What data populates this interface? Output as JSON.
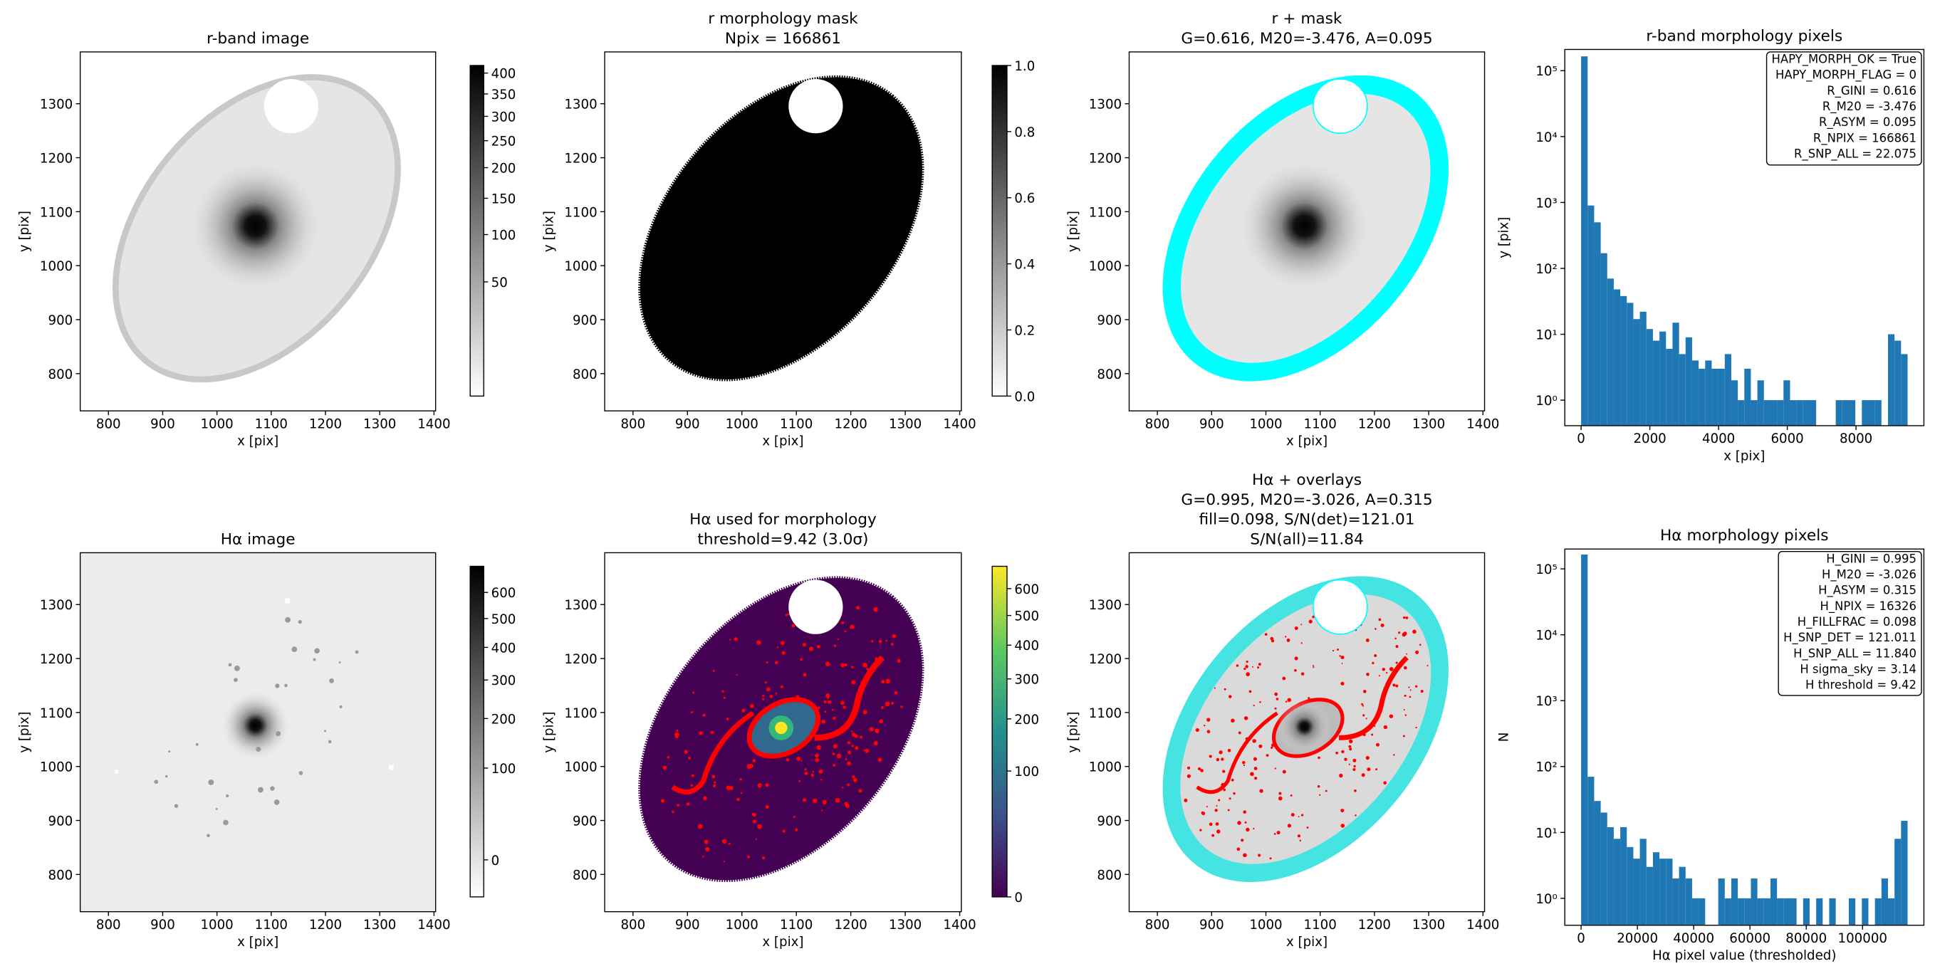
{
  "chart_data": [
    {
      "type": "image",
      "title": [
        "r-band image"
      ],
      "xlabel": "x [pix]",
      "ylabel": "y [pix]",
      "xlim": [
        748,
        1403
      ],
      "ylim": [
        731,
        1396
      ],
      "xticks": [
        800,
        900,
        1000,
        1100,
        1200,
        1300,
        1400
      ],
      "yticks": [
        800,
        900,
        1000,
        1100,
        1200,
        1300
      ],
      "colorbar": {
        "cmap": "gray_r",
        "scale": "sqrt",
        "clim": [
          0,
          419
        ],
        "ticks": [
          50,
          100,
          150,
          200,
          250,
          300,
          350,
          400
        ]
      }
    },
    {
      "type": "image",
      "title": [
        "r morphology mask",
        "Npix = 166861"
      ],
      "xlabel": "x [pix]",
      "ylabel": "y [pix]",
      "xlim": [
        748,
        1403
      ],
      "ylim": [
        731,
        1396
      ],
      "xticks": [
        800,
        900,
        1000,
        1100,
        1200,
        1300,
        1400
      ],
      "yticks": [
        800,
        900,
        1000,
        1100,
        1200,
        1300
      ],
      "colorbar": {
        "cmap": "gray_r",
        "scale": "linear",
        "clim": [
          0,
          1
        ],
        "ticks": [
          {
            "value": 0,
            "label": "0.0"
          },
          {
            "value": 0.2,
            "label": "0.2"
          },
          {
            "value": 0.4,
            "label": "0.4"
          },
          {
            "value": 0.6,
            "label": "0.6"
          },
          {
            "value": 0.8,
            "label": "0.8"
          },
          {
            "value": 1,
            "label": "1.0"
          }
        ]
      }
    },
    {
      "type": "image",
      "title": [
        "r + mask",
        "G=0.616, M20=-3.476, A=0.095"
      ],
      "xlabel": "x [pix]",
      "ylabel": "y [pix]",
      "xlim": [
        748,
        1403
      ],
      "ylim": [
        731,
        1396
      ],
      "xticks": [
        800,
        900,
        1000,
        1100,
        1200,
        1300,
        1400
      ],
      "yticks": [
        800,
        900,
        1000,
        1100,
        1200,
        1300
      ]
    },
    {
      "type": "histogram",
      "title": [
        "r-band morphology pixels"
      ],
      "xlabel": "x [pix]",
      "ylabel": "y [pix]",
      "color": "#1f77b4",
      "log_y": true,
      "xlim": [
        -475,
        9975
      ],
      "ylim": [
        0.41,
        210000
      ],
      "xticks": [
        0,
        2000,
        4000,
        6000,
        8000
      ],
      "yticks": [
        {
          "value": 1,
          "label": "10⁰"
        },
        {
          "value": 10,
          "label": "10¹"
        },
        {
          "value": 100,
          "label": "10²"
        },
        {
          "value": 1000,
          "label": "10³"
        },
        {
          "value": 10000,
          "label": "10⁴"
        },
        {
          "value": 100000,
          "label": "10⁵"
        }
      ],
      "bins": [
        0,
        190,
        380,
        570,
        760,
        950,
        1140,
        1330,
        1520,
        1710,
        1900,
        2090,
        2280,
        2470,
        2660,
        2850,
        3040,
        3230,
        3420,
        3610,
        3800,
        3990,
        4180,
        4370,
        4560,
        4750,
        4940,
        5130,
        5320,
        5510,
        5700,
        5890,
        6080,
        6270,
        6460,
        6650,
        6840,
        7030,
        7220,
        7410,
        7600,
        7790,
        7980,
        8170,
        8360,
        8550,
        8740,
        8930,
        9120,
        9310,
        9500
      ],
      "values": [
        165000,
        900,
        500,
        170,
        70,
        48,
        38,
        30,
        17,
        22,
        12,
        8,
        11,
        6,
        15,
        5,
        9,
        4,
        3,
        4,
        3,
        3,
        5,
        2,
        1,
        3,
        1,
        2,
        1,
        1,
        1,
        2,
        1,
        1,
        1,
        1,
        0,
        0,
        0,
        1,
        1,
        1,
        0,
        1,
        1,
        1,
        0,
        10,
        8,
        5
      ],
      "annotations": [
        "HAPY_MORPH_OK = True",
        "HAPY_MORPH_FLAG = 0",
        "R_GINI = 0.616",
        "R_M20 = -3.476",
        "R_ASYM = 0.095",
        "R_NPIX = 166861",
        "R_SNP_ALL = 22.075"
      ]
    },
    {
      "type": "image",
      "title": [
        "Hα image"
      ],
      "xlabel": "x [pix]",
      "ylabel": "y [pix]",
      "xlim": [
        748,
        1403
      ],
      "ylim": [
        731,
        1396
      ],
      "xticks": [
        800,
        900,
        1000,
        1100,
        1200,
        1300,
        1400
      ],
      "yticks": [
        800,
        900,
        1000,
        1100,
        1200,
        1300
      ],
      "colorbar": {
        "cmap": "gray_r",
        "scale": "sqrt",
        "clim": [
          -9,
          709
        ],
        "ticks": [
          0,
          100,
          200,
          300,
          400,
          500,
          600
        ]
      }
    },
    {
      "type": "image",
      "title": [
        "Hα used for morphology",
        "threshold=9.42 (3.0σ)"
      ],
      "xlabel": "x [pix]",
      "ylabel": "y [pix]",
      "xlim": [
        748,
        1403
      ],
      "ylim": [
        731,
        1396
      ],
      "xticks": [
        800,
        900,
        1000,
        1100,
        1200,
        1300,
        1400
      ],
      "yticks": [
        800,
        900,
        1000,
        1100,
        1200,
        1300
      ],
      "colorbar": {
        "cmap": "viridis",
        "scale": "sqrt",
        "clim": [
          0,
          690
        ],
        "ticks": [
          0,
          100,
          200,
          300,
          400,
          500,
          600
        ]
      }
    },
    {
      "type": "image",
      "title": [
        "Hα + overlays",
        "G=0.995, M20=-3.026, A=0.315",
        "fill=0.098, S/N(det)=121.01",
        "S/N(all)=11.84"
      ],
      "xlabel": "x [pix]",
      "ylabel": "y [pix]",
      "xlim": [
        748,
        1403
      ],
      "ylim": [
        731,
        1396
      ],
      "xticks": [
        800,
        900,
        1000,
        1100,
        1200,
        1300,
        1400
      ],
      "yticks": [
        800,
        900,
        1000,
        1100,
        1200,
        1300
      ]
    },
    {
      "type": "histogram",
      "title": [
        "Hα morphology pixels"
      ],
      "xlabel": "Hα pixel value (thresholded)",
      "ylabel": "N",
      "color": "#1f77b4",
      "log_y": true,
      "xlim": [
        -5800,
        121800
      ],
      "ylim": [
        0.39,
        200000
      ],
      "xticks": [
        0,
        20000,
        40000,
        60000,
        80000,
        100000
      ],
      "yticks": [
        {
          "value": 1,
          "label": "10⁰"
        },
        {
          "value": 10,
          "label": "10¹"
        },
        {
          "value": 100,
          "label": "10²"
        },
        {
          "value": 1000,
          "label": "10³"
        },
        {
          "value": 10000,
          "label": "10⁴"
        },
        {
          "value": 100000,
          "label": "10⁵"
        }
      ],
      "bins": [
        0,
        2320,
        4640,
        6960,
        9280,
        11600,
        13920,
        16240,
        18560,
        20880,
        23200,
        25520,
        27840,
        30160,
        32480,
        34800,
        37120,
        39440,
        41760,
        44080,
        46400,
        48720,
        51040,
        53360,
        55680,
        58000,
        60320,
        62640,
        64960,
        67280,
        69600,
        71920,
        74240,
        76560,
        78880,
        81200,
        83520,
        85840,
        88160,
        90480,
        92800,
        95120,
        97440,
        99760,
        102080,
        104400,
        106720,
        109040,
        111360,
        113680,
        116000
      ],
      "values": [
        165000,
        70,
        30,
        20,
        12,
        8,
        12,
        6,
        4,
        8,
        3,
        5,
        4,
        4,
        2,
        3,
        2,
        1,
        1,
        0,
        0,
        2,
        1,
        2,
        1,
        1,
        2,
        1,
        1,
        2,
        1,
        1,
        1,
        0,
        1,
        0,
        1,
        0,
        1,
        0,
        0,
        1,
        0,
        1,
        0,
        1,
        2,
        1,
        8,
        15
      ],
      "annotations": [
        "H_GINI = 0.995",
        "H_M20 = -3.026",
        "H_ASYM = 0.315",
        "H_NPIX = 16326",
        "H_FILLFRAC = 0.098",
        "H_SNP_DET = 121.011",
        "H_SNP_ALL = 11.840",
        "H sigma_sky = 3.14",
        "H threshold = 9.42"
      ]
    }
  ]
}
